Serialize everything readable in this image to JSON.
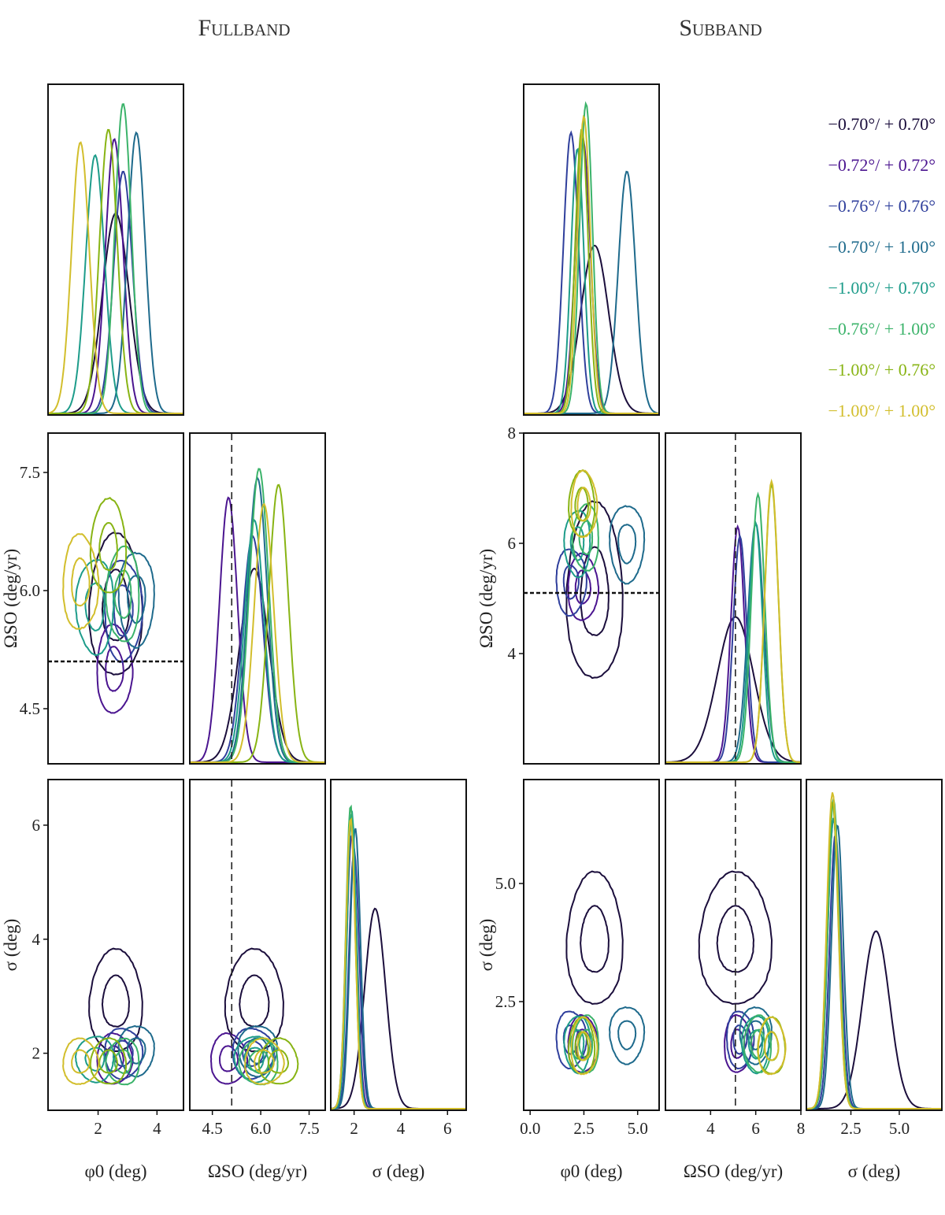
{
  "colors": {
    "c1": "#1b0e3c",
    "c2": "#4b1590",
    "c3": "#2f3f9c",
    "c4": "#1e6a8c",
    "c5": "#1d9c8a",
    "c6": "#3bb36a",
    "c7": "#88b414",
    "c8": "#d2be2c"
  },
  "chart_data": [
    {
      "type": "corner",
      "title": "Fullband",
      "params": [
        "φ0 (deg)",
        "ΩSO (deg/yr)",
        "σ (deg)"
      ],
      "xlabels": [
        "φ0 (deg)",
        "ΩSO (deg/yr)",
        "σ (deg)"
      ],
      "ylabels": [
        "",
        "ΩSO (deg/yr)",
        "σ (deg)"
      ],
      "ranges": [
        [
          0.3,
          4.9
        ],
        [
          3.8,
          8.0
        ],
        [
          1.0,
          6.8
        ]
      ],
      "ticks": [
        [
          2,
          4
        ],
        [
          4.5,
          6.0,
          7.5
        ],
        [
          2,
          4,
          6
        ]
      ],
      "tick_labels": [
        [
          "2",
          "4"
        ],
        [
          "4.5",
          "6.0",
          "7.5"
        ],
        [
          "2",
          "4",
          "6"
        ]
      ],
      "ytick_labels_row1": [
        "4.5",
        "6.0",
        "7.5"
      ],
      "ytick_labels_row2": [
        "2",
        "4",
        "6"
      ],
      "reference": {
        "param": "ΩSO",
        "value": 5.1
      },
      "series": [
        {
          "name": "−0.70°/+0.70°",
          "color": "c1",
          "mean": [
            2.6,
            5.8,
            2.9
          ],
          "sd": [
            0.45,
            0.45,
            0.45
          ],
          "peak": [
            0.62,
            0.6,
            0.62
          ]
        },
        {
          "name": "−0.72°/+0.72°",
          "color": "c2",
          "mean": [
            2.55,
            5.0,
            1.9
          ],
          "sd": [
            0.3,
            0.28,
            0.22
          ],
          "peak": [
            0.85,
            0.82,
            0.85
          ]
        },
        {
          "name": "−0.76°/+0.76°",
          "color": "c3",
          "mean": [
            2.85,
            5.75,
            2.0
          ],
          "sd": [
            0.32,
            0.32,
            0.22
          ],
          "peak": [
            0.75,
            0.7,
            0.8
          ]
        },
        {
          "name": "−0.70°/+1.00°",
          "color": "c4",
          "mean": [
            3.3,
            5.9,
            2.05
          ],
          "sd": [
            0.3,
            0.3,
            0.22
          ],
          "peak": [
            0.87,
            0.88,
            0.87
          ]
        },
        {
          "name": "−1.00°/+0.70°",
          "color": "c5",
          "mean": [
            1.9,
            5.8,
            1.9
          ],
          "sd": [
            0.32,
            0.3,
            0.2
          ],
          "peak": [
            0.8,
            0.75,
            0.92
          ]
        },
        {
          "name": "−0.76°/+1.00°",
          "color": "c6",
          "mean": [
            2.85,
            5.95,
            1.85
          ],
          "sd": [
            0.28,
            0.3,
            0.2
          ],
          "peak": [
            0.96,
            0.91,
            0.94
          ]
        },
        {
          "name": "−1.00°/+0.76°",
          "color": "c7",
          "mean": [
            2.35,
            6.55,
            1.85
          ],
          "sd": [
            0.3,
            0.3,
            0.2
          ],
          "peak": [
            0.88,
            0.86,
            0.9
          ]
        },
        {
          "name": "−1.00°/+1.00°",
          "color": "c8",
          "mean": [
            1.4,
            6.1,
            1.85
          ],
          "sd": [
            0.3,
            0.3,
            0.2
          ],
          "peak": [
            0.84,
            0.8,
            0.9
          ]
        }
      ]
    },
    {
      "type": "corner",
      "title": "Subband",
      "params": [
        "φ0 (deg)",
        "ΩSO (deg/yr)",
        "σ (deg)"
      ],
      "xlabels": [
        "φ0 (deg)",
        "ΩSO (deg/yr)",
        "σ (deg)"
      ],
      "ylabels": [
        "",
        "ΩSO (deg/yr)",
        "σ (deg)"
      ],
      "ranges": [
        [
          -0.3,
          6.0
        ],
        [
          2.0,
          8.0
        ],
        [
          0.2,
          7.2
        ]
      ],
      "ticks": [
        [
          0.0,
          2.5,
          5.0
        ],
        [
          4,
          6,
          8
        ],
        [
          2.5,
          5.0
        ]
      ],
      "tick_labels": [
        [
          "0.0",
          "2.5",
          "5.0"
        ],
        [
          "4",
          "6",
          "8"
        ],
        [
          "2.5",
          "5.0"
        ]
      ],
      "ytick_labels_row1": [
        "4",
        "6",
        "8"
      ],
      "ytick_labels_row2": [
        "2.5",
        "5.0"
      ],
      "reference": {
        "param": "ΩSO",
        "value": 5.1
      },
      "series": [
        {
          "name": "−0.70°/+0.70°",
          "color": "c1",
          "mean": [
            3.0,
            5.1,
            3.8
          ],
          "sd": [
            0.65,
            0.8,
            0.7
          ],
          "peak": [
            0.52,
            0.45,
            0.55
          ]
        },
        {
          "name": "−0.72°/+0.72°",
          "color": "c2",
          "mean": [
            2.45,
            5.2,
            1.6
          ],
          "sd": [
            0.35,
            0.3,
            0.3
          ],
          "peak": [
            0.85,
            0.73,
            0.9
          ]
        },
        {
          "name": "−0.76°/+0.76°",
          "color": "c3",
          "mean": [
            1.9,
            5.3,
            1.7
          ],
          "sd": [
            0.35,
            0.3,
            0.3
          ],
          "peak": [
            0.87,
            0.7,
            0.85
          ]
        },
        {
          "name": "−0.70°/+1.00°",
          "color": "c4",
          "mean": [
            4.5,
            6.0,
            1.8
          ],
          "sd": [
            0.4,
            0.35,
            0.3
          ],
          "peak": [
            0.75,
            0.74,
            0.88
          ]
        },
        {
          "name": "−1.00°/+0.70°",
          "color": "c5",
          "mean": [
            2.2,
            6.0,
            1.6
          ],
          "sd": [
            0.3,
            0.3,
            0.3
          ],
          "peak": [
            0.82,
            0.74,
            0.9
          ]
        },
        {
          "name": "−0.76°/+1.00°",
          "color": "c6",
          "mean": [
            2.6,
            6.1,
            1.6
          ],
          "sd": [
            0.3,
            0.3,
            0.3
          ],
          "peak": [
            0.96,
            0.83,
            0.96
          ]
        },
        {
          "name": "−1.00°/+0.76°",
          "color": "c7",
          "mean": [
            2.4,
            6.7,
            1.55
          ],
          "sd": [
            0.3,
            0.3,
            0.3
          ],
          "peak": [
            0.88,
            0.86,
            0.95
          ]
        },
        {
          "name": "−1.00°/+1.00°",
          "color": "c8",
          "mean": [
            2.5,
            6.7,
            1.55
          ],
          "sd": [
            0.3,
            0.3,
            0.3
          ],
          "peak": [
            0.92,
            0.87,
            0.98
          ]
        }
      ]
    }
  ],
  "legend": [
    {
      "label": "−0.70°/ + 0.70°",
      "color": "c1"
    },
    {
      "label": "−0.72°/ + 0.72°",
      "color": "c2"
    },
    {
      "label": "−0.76°/ + 0.76°",
      "color": "c3"
    },
    {
      "label": "−0.70°/ + 1.00°",
      "color": "c4"
    },
    {
      "label": "−1.00°/ + 0.70°",
      "color": "c5"
    },
    {
      "label": "−0.76°/ + 1.00°",
      "color": "c6"
    },
    {
      "label": "−1.00°/ + 0.76°",
      "color": "c7"
    },
    {
      "label": "−1.00°/ + 1.00°",
      "color": "c8"
    }
  ]
}
